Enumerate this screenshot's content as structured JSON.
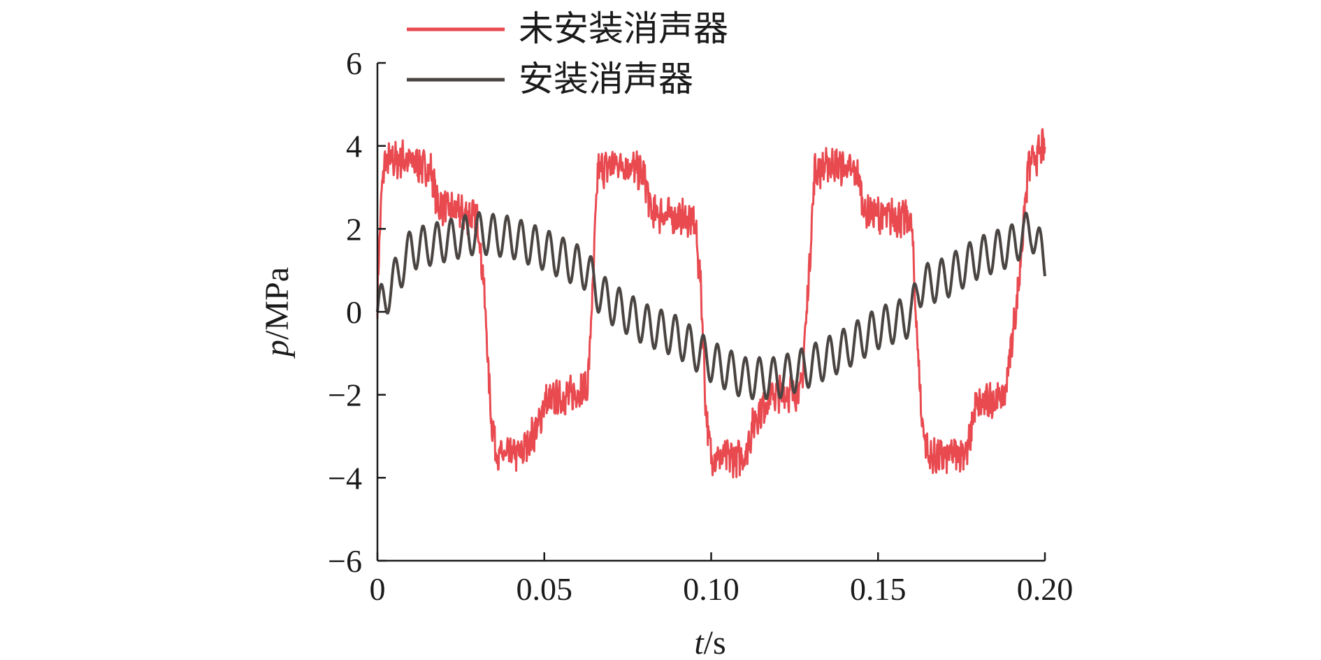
{
  "chart_data": {
    "type": "line",
    "title": "",
    "xlabel_var": "t",
    "xlabel_unit": "/s",
    "ylabel_var": "p",
    "ylabel_unit": "/MPa",
    "xlim": [
      0,
      0.2
    ],
    "ylim": [
      -6,
      6
    ],
    "x_ticks": [
      {
        "value": 0,
        "label": "0"
      },
      {
        "value": 0.05,
        "label": "0.05"
      },
      {
        "value": 0.1,
        "label": "0.10"
      },
      {
        "value": 0.15,
        "label": "0.15"
      },
      {
        "value": 0.2,
        "label": "0.20"
      }
    ],
    "y_ticks": [
      {
        "value": 6,
        "label": "6"
      },
      {
        "value": 4,
        "label": "4"
      },
      {
        "value": 2,
        "label": "2"
      },
      {
        "value": 0,
        "label": "0"
      },
      {
        "value": -2,
        "label": "−2"
      },
      {
        "value": -4,
        "label": "−4"
      },
      {
        "value": -6,
        "label": "−6"
      }
    ],
    "grid": false,
    "legend_position": "top",
    "series": [
      {
        "name": "未安装消声器",
        "color": "#e84a50",
        "points": [
          [
            0,
            0.2
          ],
          [
            0.0008,
            2.2
          ],
          [
            0.002,
            3.6
          ],
          [
            0.008,
            3.7
          ],
          [
            0.016,
            3.4
          ],
          [
            0.018,
            2.6
          ],
          [
            0.024,
            2.4
          ],
          [
            0.03,
            2.3
          ],
          [
            0.032,
            0.5
          ],
          [
            0.034,
            -2.5
          ],
          [
            0.036,
            -3.5
          ],
          [
            0.043,
            -3.4
          ],
          [
            0.048,
            -2.8
          ],
          [
            0.05,
            -2.2
          ],
          [
            0.058,
            -2.0
          ],
          [
            0.063,
            -1.8
          ],
          [
            0.0645,
            0.5
          ],
          [
            0.066,
            3.4
          ],
          [
            0.073,
            3.6
          ],
          [
            0.08,
            3.3
          ],
          [
            0.082,
            2.4
          ],
          [
            0.095,
            2.2
          ],
          [
            0.097,
            0.5
          ],
          [
            0.0985,
            -2.5
          ],
          [
            0.1,
            -3.5
          ],
          [
            0.11,
            -3.5
          ],
          [
            0.113,
            -2.6
          ],
          [
            0.118,
            -2.0
          ],
          [
            0.127,
            -1.9
          ],
          [
            0.129,
            0.5
          ],
          [
            0.131,
            3.4
          ],
          [
            0.137,
            3.6
          ],
          [
            0.144,
            3.3
          ],
          [
            0.146,
            2.4
          ],
          [
            0.16,
            2.2
          ],
          [
            0.161,
            0.5
          ],
          [
            0.163,
            -2.5
          ],
          [
            0.165,
            -3.5
          ],
          [
            0.17,
            -3.5
          ],
          [
            0.177,
            -3.3
          ],
          [
            0.179,
            -2.3
          ],
          [
            0.188,
            -2.0
          ],
          [
            0.192,
            0.5
          ],
          [
            0.195,
            3.5
          ],
          [
            0.2,
            4.0
          ]
        ],
        "noise_amplitude": 0.45
      },
      {
        "name": "安装消声器",
        "color": "#4a4542",
        "points": [
          [
            0,
            0.0
          ],
          [
            0.01,
            1.5
          ],
          [
            0.02,
            1.7
          ],
          [
            0.03,
            1.9
          ],
          [
            0.04,
            1.8
          ],
          [
            0.05,
            1.5
          ],
          [
            0.063,
            1.0
          ],
          [
            0.066,
            0.5
          ],
          [
            0.07,
            0.2
          ],
          [
            0.08,
            -0.3
          ],
          [
            0.09,
            -0.6
          ],
          [
            0.1,
            -1.2
          ],
          [
            0.11,
            -1.6
          ],
          [
            0.12,
            -1.6
          ],
          [
            0.13,
            -1.3
          ],
          [
            0.14,
            -0.9
          ],
          [
            0.15,
            -0.4
          ],
          [
            0.16,
            -0.1
          ],
          [
            0.162,
            0.6
          ],
          [
            0.17,
            0.8
          ],
          [
            0.18,
            1.3
          ],
          [
            0.19,
            1.6
          ],
          [
            0.196,
            2.0
          ],
          [
            0.2,
            1.2
          ]
        ],
        "osc_amplitude": 0.5,
        "osc_period": 0.0042
      }
    ]
  }
}
